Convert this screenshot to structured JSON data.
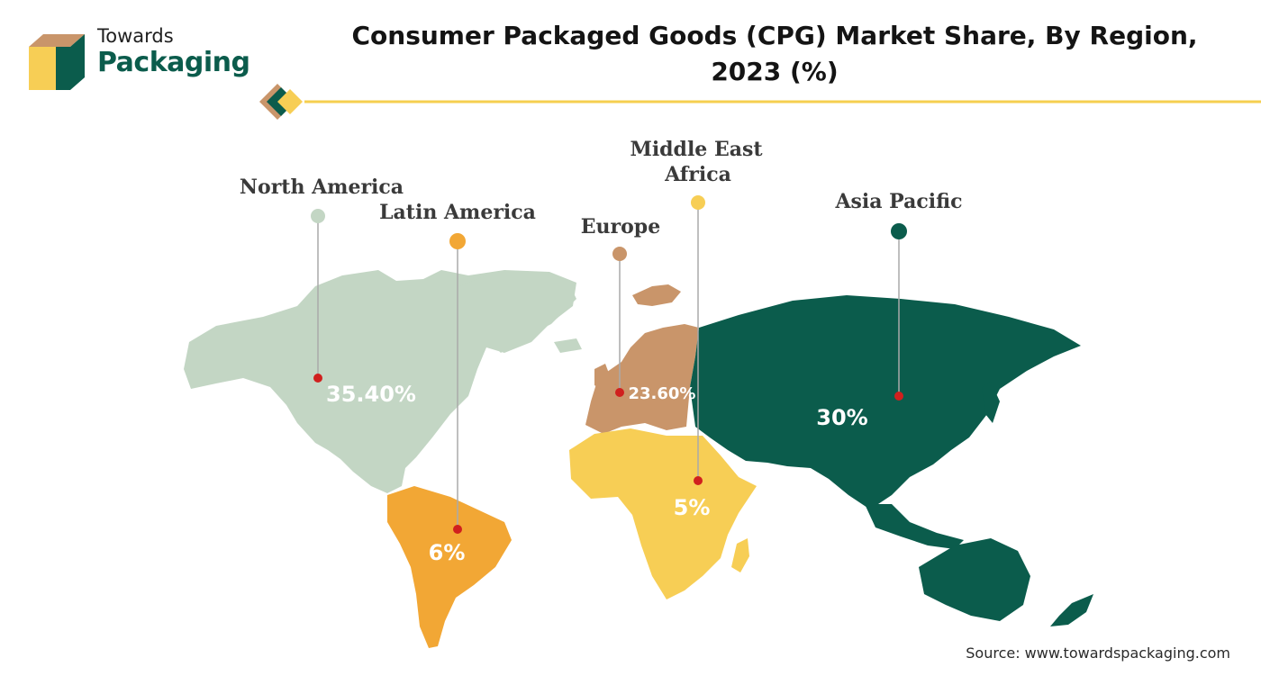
{
  "header": {
    "logo_line1": "Towards",
    "logo_line2": "Packaging",
    "title_line1": "Consumer Packaged Goods (CPG) Market Share, By Region,",
    "title_line2": "2023 (%)"
  },
  "colors": {
    "north_america": "#c3d6c4",
    "latin_america": "#f2a735",
    "europe": "#c9956a",
    "middle_east_africa": "#f7ce55",
    "asia_pacific": "#0b5c4c",
    "marker": "#d0201e",
    "accent_line": "#f5cf4f"
  },
  "chart_data": {
    "type": "map",
    "title": "Consumer Packaged Goods (CPG) Market Share, By Region, 2023 (%)",
    "regions": [
      {
        "id": "north_america",
        "name": "North America",
        "value": 35.4,
        "label": "35.40%"
      },
      {
        "id": "latin_america",
        "name": "Latin America",
        "value": 6,
        "label": "6%"
      },
      {
        "id": "europe",
        "name": "Europe",
        "value": 23.6,
        "label": "23.60%"
      },
      {
        "id": "middle_east_africa",
        "name": "Middle East Africa",
        "value": 5,
        "label": "5%"
      },
      {
        "id": "asia_pacific",
        "name": "Asia Pacific",
        "value": 30,
        "label": "30%"
      }
    ]
  },
  "labels": {
    "north_america": "North America",
    "latin_america": "Latin America",
    "europe": "Europe",
    "mea_line1": "Middle East",
    "mea_line2": "Africa",
    "asia_pacific": "Asia Pacific"
  },
  "values": {
    "north_america": "35.40%",
    "latin_america": "6%",
    "europe": "23.60%",
    "middle_east_africa": "5%",
    "asia_pacific": "30%"
  },
  "footer": {
    "source": "Source: www.towardspackaging.com"
  }
}
